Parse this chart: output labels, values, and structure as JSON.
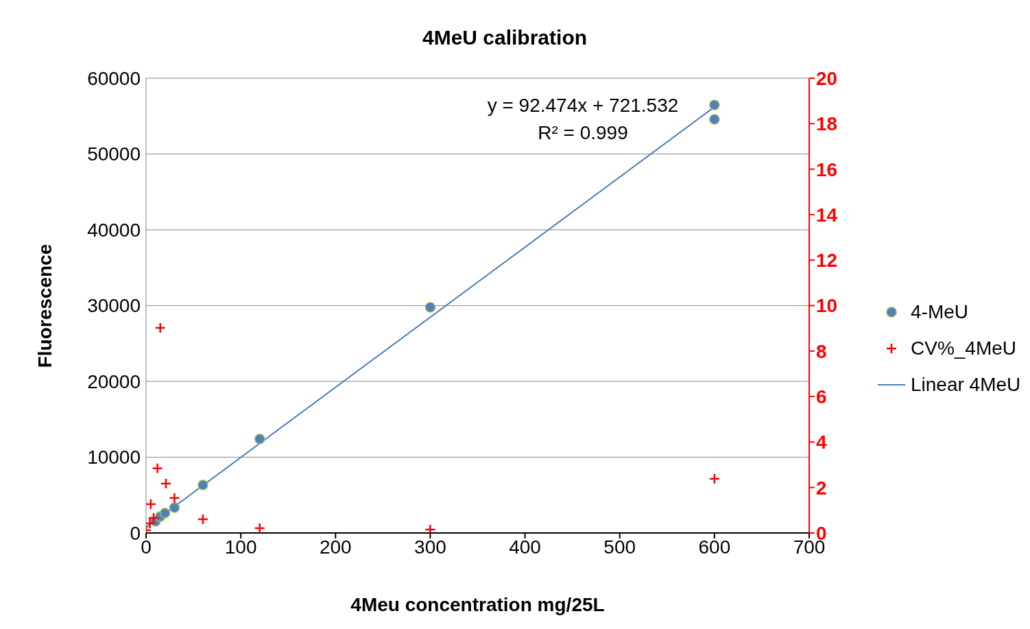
{
  "chart_data": {
    "type": "scatter",
    "title": "4MeU calibration",
    "xlabel": "4Meu concentration mg/25L",
    "ylabel": "Fluorescence",
    "xlim": [
      0,
      700
    ],
    "xticks": [
      0,
      100,
      200,
      300,
      400,
      500,
      600,
      700
    ],
    "ylim": [
      0,
      60000
    ],
    "yticks": [
      0,
      10000,
      20000,
      30000,
      40000,
      50000,
      60000
    ],
    "y2lim": [
      0,
      20
    ],
    "y2ticks": [
      0,
      2,
      4,
      6,
      8,
      10,
      12,
      14,
      16,
      18,
      20
    ],
    "grid": "y",
    "legend": "right",
    "marker": "circle",
    "annotations": [
      "y = 92.474x + 721.532",
      "R² = 0.999"
    ],
    "series": [
      {
        "name": "4-MeU",
        "color": "#4f81bd",
        "x": [
          10,
          15,
          20,
          30,
          60,
          120,
          300,
          600,
          600
        ],
        "values": [
          1540,
          2170,
          2620,
          3350,
          6330,
          12400,
          29770,
          56470,
          54570
        ]
      },
      {
        "name": "CV%_4MeU",
        "color": "#ff0000",
        "axis": "y2",
        "marker": "cross",
        "x": [
          0,
          4,
          5,
          8,
          12,
          15,
          21,
          30,
          60,
          120,
          300,
          600
        ],
        "values": [
          0.12,
          0.42,
          1.27,
          0.66,
          2.84,
          9.02,
          2.17,
          1.54,
          0.6,
          0.21,
          0.15,
          2.38
        ]
      },
      {
        "name": "Linear 4MeU",
        "type": "line",
        "color": "#4a7ebb",
        "marker": "none",
        "x": [
          0,
          600
        ],
        "values": [
          720,
          56210
        ]
      }
    ]
  }
}
